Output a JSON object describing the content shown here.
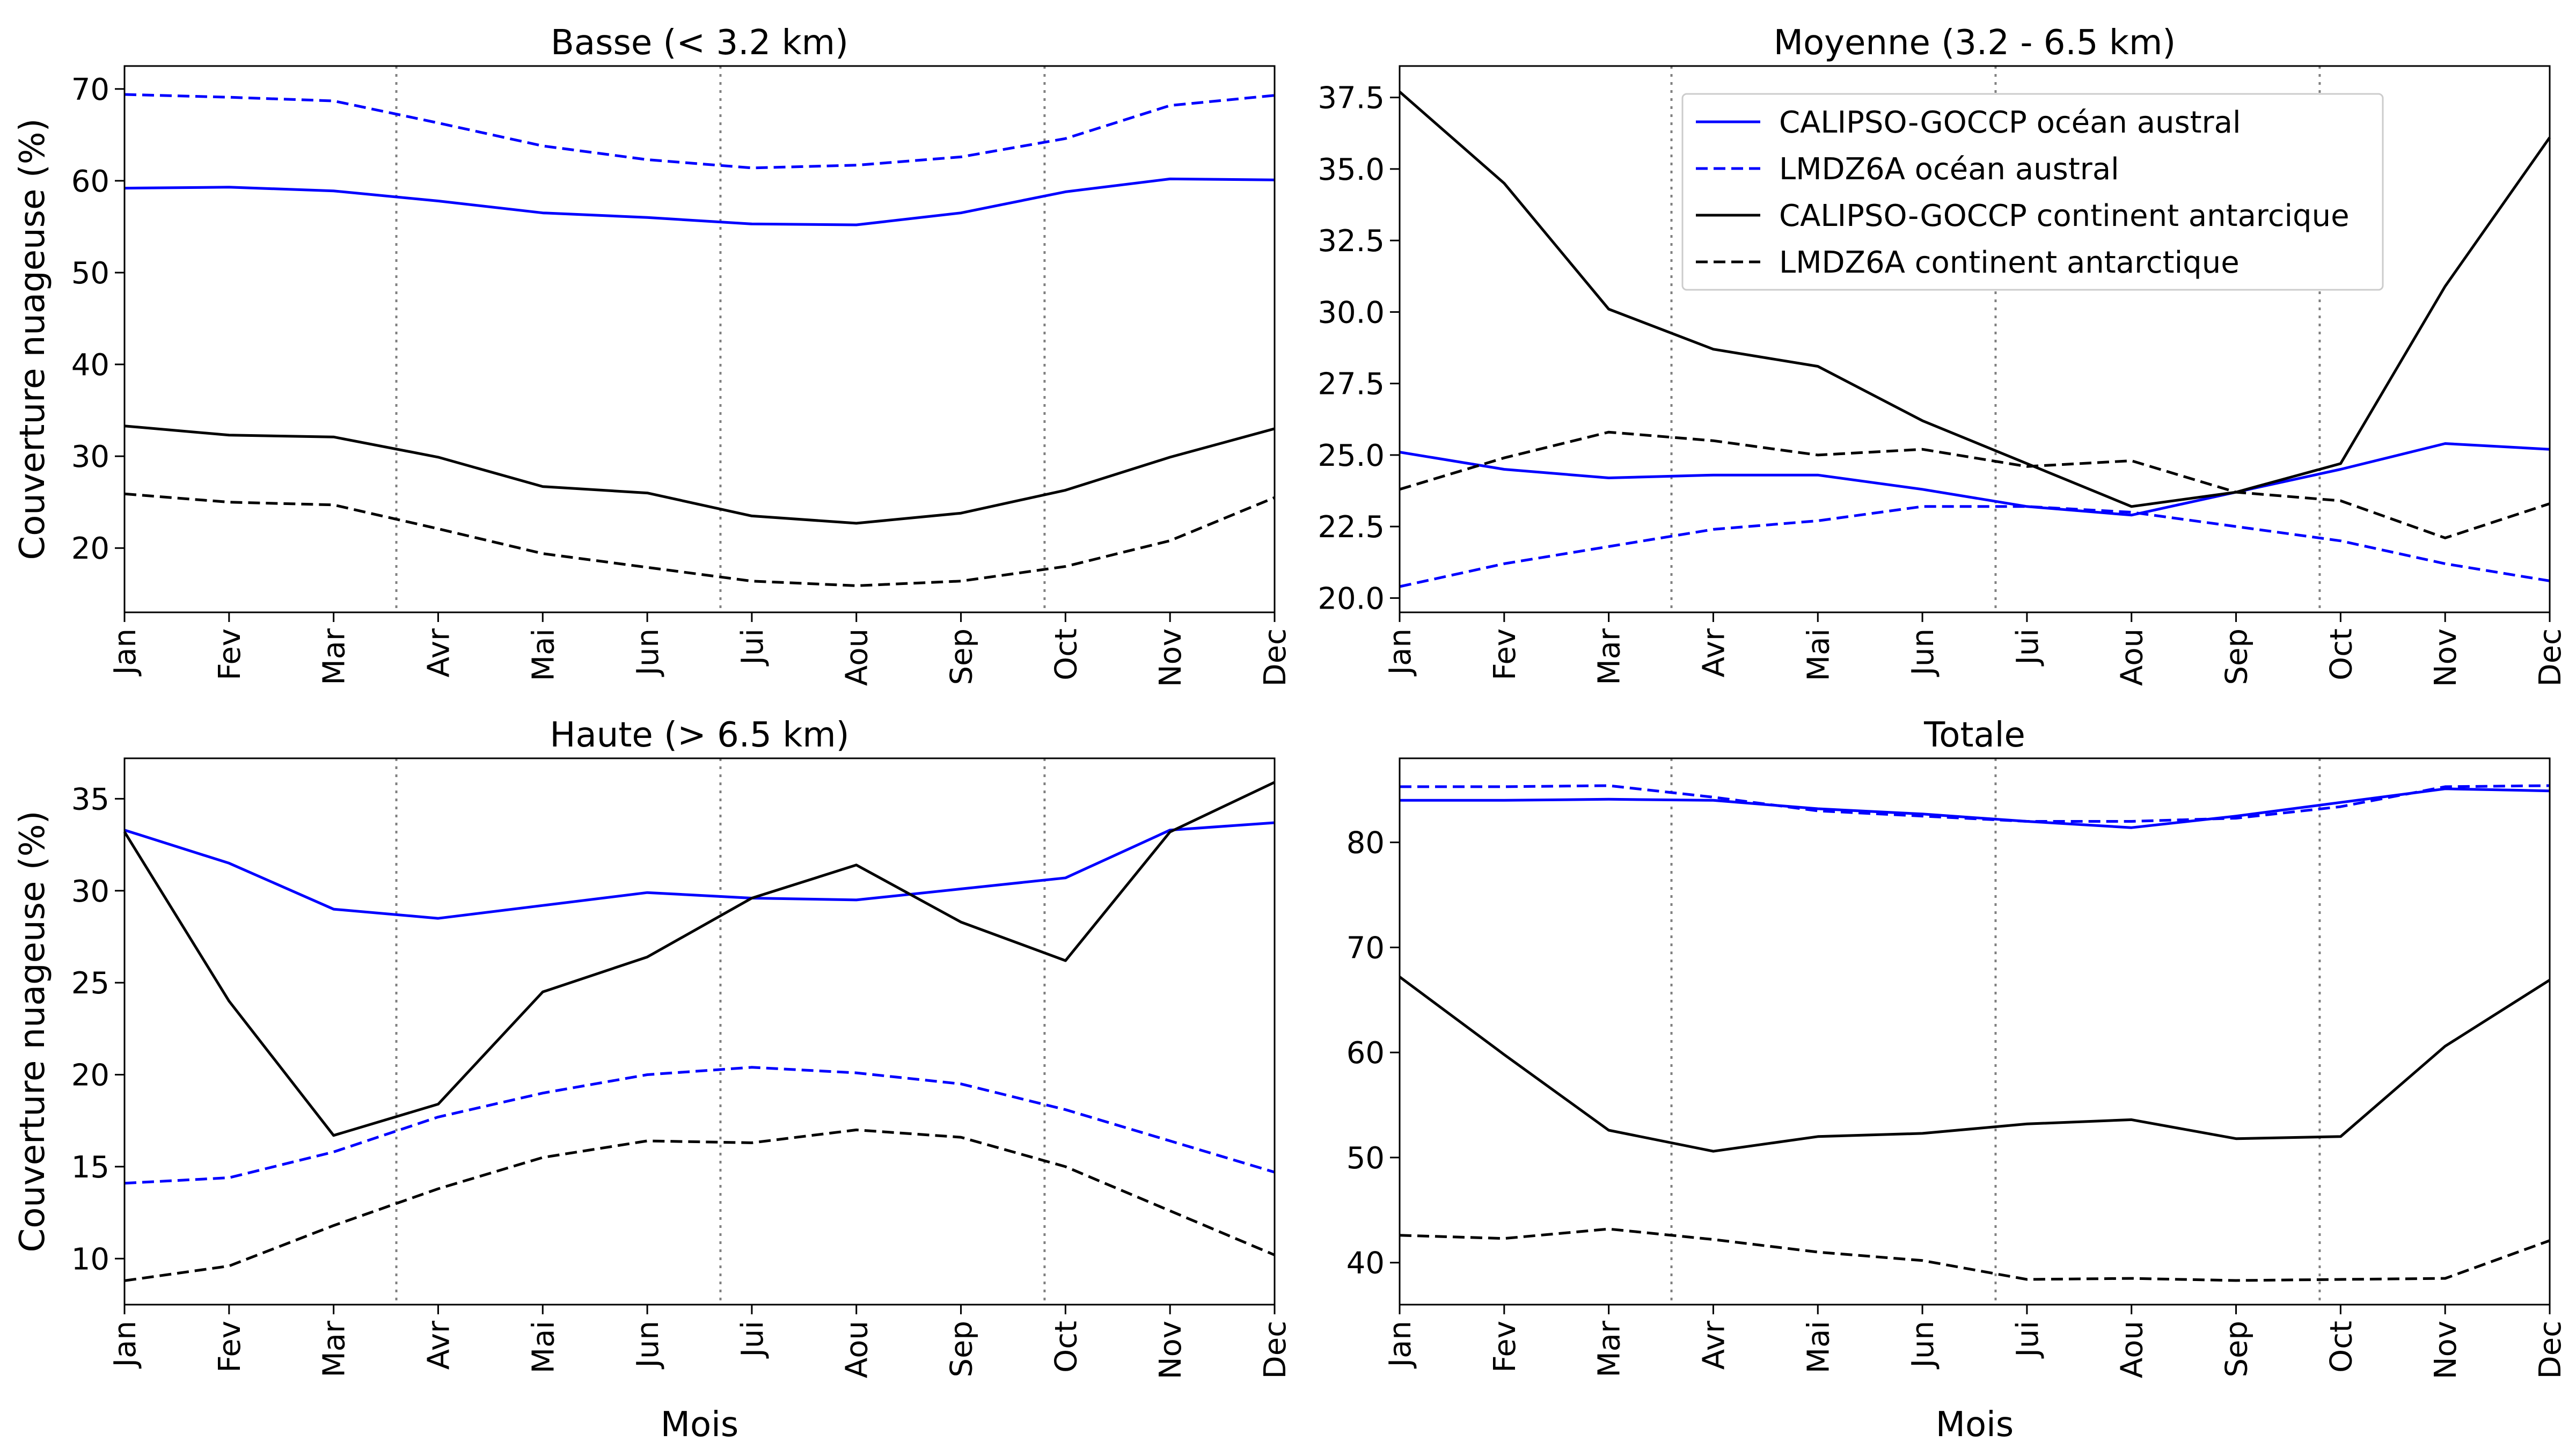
{
  "colors": {
    "blue": "#0000ff",
    "black": "#000000",
    "season_line": "#808080"
  },
  "legend": {
    "placement": "top-center of panel 2",
    "entries": [
      {
        "label": "CALIPSO-GOCCP océan austral",
        "color": "#0000ff",
        "dash": "solid"
      },
      {
        "label": "LMDZ6A océan austral",
        "color": "#0000ff",
        "dash": "dashed"
      },
      {
        "label": "CALIPSO-GOCCP continent antarcique",
        "color": "#000000",
        "dash": "solid"
      },
      {
        "label": "LMDZ6A continent antarctique",
        "color": "#000000",
        "dash": "dashed"
      }
    ]
  },
  "chart_data": [
    {
      "type": "line",
      "title": "Basse (< 3.2 km)",
      "xlabel": "",
      "ylabel": "Couverture nuageuse (%)",
      "categories": [
        "Jan",
        "Fev",
        "Mar",
        "Avr",
        "Mai",
        "Jun",
        "Jui",
        "Aou",
        "Sep",
        "Oct",
        "Nov",
        "Dec"
      ],
      "ylim": [
        13,
        72.5
      ],
      "yticks": [
        20,
        30,
        40,
        50,
        60,
        70
      ],
      "season_lines": [
        2.6,
        5.7,
        8.8
      ],
      "series": [
        {
          "name": "CALIPSO-GOCCP océan austral",
          "color": "#0000ff",
          "dash": "solid",
          "values": [
            59.2,
            59.3,
            58.9,
            57.8,
            56.5,
            56.0,
            55.3,
            55.2,
            56.5,
            58.8,
            60.2,
            60.1
          ]
        },
        {
          "name": "LMDZ6A océan austral",
          "color": "#0000ff",
          "dash": "dashed",
          "values": [
            69.4,
            69.1,
            68.7,
            66.3,
            63.8,
            62.3,
            61.4,
            61.7,
            62.6,
            64.6,
            68.2,
            69.3
          ]
        },
        {
          "name": "CALIPSO-GOCCP continent antarcique",
          "color": "#000000",
          "dash": "solid",
          "values": [
            33.3,
            32.3,
            32.1,
            29.9,
            26.7,
            26.0,
            23.5,
            22.7,
            23.8,
            26.3,
            29.9,
            33.0
          ]
        },
        {
          "name": "LMDZ6A continent antarctique",
          "color": "#000000",
          "dash": "dashed",
          "values": [
            25.9,
            25.0,
            24.7,
            22.1,
            19.4,
            17.9,
            16.4,
            15.9,
            16.4,
            18.0,
            20.8,
            25.5
          ]
        }
      ]
    },
    {
      "type": "line",
      "title": "Moyenne (3.2 - 6.5 km)",
      "xlabel": "",
      "ylabel": "",
      "categories": [
        "Jan",
        "Fev",
        "Mar",
        "Avr",
        "Mai",
        "Jun",
        "Jui",
        "Aou",
        "Sep",
        "Oct",
        "Nov",
        "Dec"
      ],
      "ylim": [
        19.5,
        38.6
      ],
      "yticks": [
        20.0,
        22.5,
        25.0,
        27.5,
        30.0,
        32.5,
        35.0,
        37.5
      ],
      "ytick_labels": [
        "20.0",
        "22.5",
        "25.0",
        "27.5",
        "30.0",
        "32.5",
        "35.0",
        "37.5"
      ],
      "season_lines": [
        2.6,
        5.7,
        8.8
      ],
      "series": [
        {
          "name": "CALIPSO-GOCCP océan austral",
          "color": "#0000ff",
          "dash": "solid",
          "values": [
            25.1,
            24.5,
            24.2,
            24.3,
            24.3,
            23.8,
            23.2,
            22.9,
            23.7,
            24.5,
            25.4,
            25.2
          ]
        },
        {
          "name": "LMDZ6A océan austral",
          "color": "#0000ff",
          "dash": "dashed",
          "values": [
            20.4,
            21.2,
            21.8,
            22.4,
            22.7,
            23.2,
            23.2,
            23.0,
            22.5,
            22.0,
            21.2,
            20.6
          ]
        },
        {
          "name": "CALIPSO-GOCCP continent antarcique",
          "color": "#000000",
          "dash": "solid",
          "values": [
            37.7,
            34.5,
            30.1,
            28.7,
            28.1,
            26.2,
            24.7,
            23.2,
            23.7,
            24.7,
            30.9,
            36.1
          ]
        },
        {
          "name": "LMDZ6A continent antarctique",
          "color": "#000000",
          "dash": "dashed",
          "values": [
            23.8,
            24.9,
            25.8,
            25.5,
            25.0,
            25.2,
            24.6,
            24.8,
            23.7,
            23.4,
            22.1,
            23.3
          ]
        }
      ]
    },
    {
      "type": "line",
      "title": "Haute (> 6.5 km)",
      "xlabel": "Mois",
      "ylabel": "Couverture nuageuse (%)",
      "categories": [
        "Jan",
        "Fev",
        "Mar",
        "Avr",
        "Mai",
        "Jun",
        "Jui",
        "Aou",
        "Sep",
        "Oct",
        "Nov",
        "Dec"
      ],
      "ylim": [
        7.5,
        37.2
      ],
      "yticks": [
        10,
        15,
        20,
        25,
        30,
        35
      ],
      "season_lines": [
        2.6,
        5.7,
        8.8
      ],
      "series": [
        {
          "name": "CALIPSO-GOCCP océan austral",
          "color": "#0000ff",
          "dash": "solid",
          "values": [
            33.3,
            31.5,
            29.0,
            28.5,
            29.2,
            29.9,
            29.6,
            29.5,
            30.1,
            30.7,
            33.3,
            33.7
          ]
        },
        {
          "name": "LMDZ6A océan austral",
          "color": "#0000ff",
          "dash": "dashed",
          "values": [
            14.1,
            14.4,
            15.8,
            17.7,
            19.0,
            20.0,
            20.4,
            20.1,
            19.5,
            18.1,
            16.4,
            14.7
          ]
        },
        {
          "name": "CALIPSO-GOCCP continent antarcique",
          "color": "#000000",
          "dash": "solid",
          "values": [
            33.2,
            24.0,
            16.7,
            18.4,
            24.5,
            26.4,
            29.6,
            31.4,
            28.3,
            26.2,
            33.2,
            35.9
          ]
        },
        {
          "name": "LMDZ6A continent antarctique",
          "color": "#000000",
          "dash": "dashed",
          "values": [
            8.8,
            9.6,
            11.8,
            13.8,
            15.5,
            16.4,
            16.3,
            17.0,
            16.6,
            15.0,
            12.6,
            10.2
          ]
        }
      ]
    },
    {
      "type": "line",
      "title": "Totale",
      "xlabel": "Mois",
      "ylabel": "",
      "categories": [
        "Jan",
        "Fev",
        "Mar",
        "Avr",
        "Mai",
        "Jun",
        "Jui",
        "Aou",
        "Sep",
        "Oct",
        "Nov",
        "Dec"
      ],
      "ylim": [
        36,
        88
      ],
      "yticks": [
        40,
        50,
        60,
        70,
        80
      ],
      "season_lines": [
        2.6,
        5.7,
        8.8
      ],
      "series": [
        {
          "name": "CALIPSO-GOCCP océan austral",
          "color": "#0000ff",
          "dash": "solid",
          "values": [
            84.0,
            84.0,
            84.1,
            84.0,
            83.2,
            82.7,
            82.0,
            81.4,
            82.5,
            83.8,
            85.1,
            84.9
          ]
        },
        {
          "name": "LMDZ6A océan austral",
          "color": "#0000ff",
          "dash": "dashed",
          "values": [
            85.3,
            85.3,
            85.4,
            84.3,
            83.0,
            82.5,
            82.0,
            82.0,
            82.3,
            83.4,
            85.3,
            85.4
          ]
        },
        {
          "name": "CALIPSO-GOCCP continent antarcique",
          "color": "#000000",
          "dash": "solid",
          "values": [
            67.2,
            59.8,
            52.6,
            50.6,
            52.0,
            52.3,
            53.2,
            53.6,
            51.8,
            52.0,
            60.6,
            66.9
          ]
        },
        {
          "name": "LMDZ6A continent antarctique",
          "color": "#000000",
          "dash": "dashed",
          "values": [
            42.6,
            42.3,
            43.2,
            42.2,
            41.0,
            40.2,
            38.4,
            38.5,
            38.3,
            38.4,
            38.5,
            42.1
          ]
        }
      ]
    }
  ]
}
